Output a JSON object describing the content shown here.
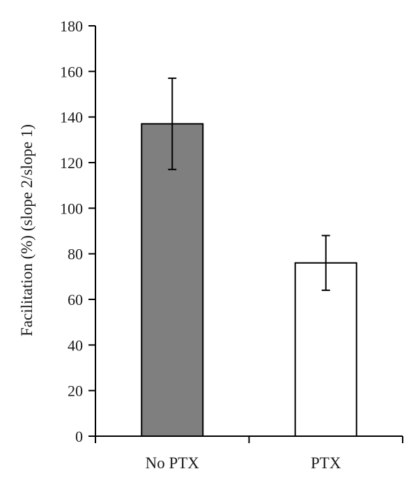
{
  "chart_data": {
    "type": "bar",
    "title": "",
    "xlabel": "",
    "ylabel": "Facilitation (%) (slope 2/slope 1)",
    "ylim": [
      0,
      180
    ],
    "yticks": [
      0,
      20,
      40,
      60,
      80,
      100,
      120,
      140,
      160,
      180
    ],
    "grid": false,
    "legend": "none",
    "categories": [
      "No PTX",
      "PTX"
    ],
    "values": [
      137,
      76
    ],
    "errors": [
      20,
      12
    ],
    "bar_fill": [
      "#7f7f7f",
      "#ffffff"
    ],
    "bar_stroke": "#000000"
  }
}
